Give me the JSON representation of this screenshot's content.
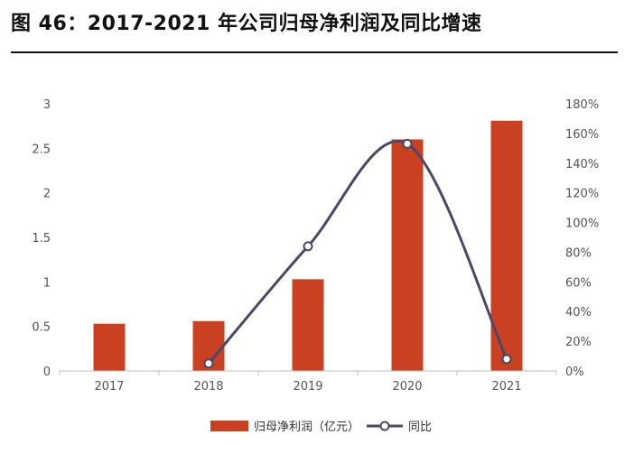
{
  "header": {
    "title": "图 46：2017-2021 年公司归母净利润及同比增速"
  },
  "colors": {
    "bar": "#c94121",
    "line": "#4a4868"
  },
  "chart_data": {
    "type": "bar",
    "categories": [
      "2017",
      "2018",
      "2019",
      "2020",
      "2021"
    ],
    "series": [
      {
        "name": "归母净利润（亿元）",
        "type": "bar",
        "axis": "left",
        "values": [
          0.53,
          0.56,
          1.03,
          2.6,
          2.81
        ]
      },
      {
        "name": "同比",
        "type": "line",
        "axis": "right",
        "values": [
          null,
          5,
          84,
          153,
          8
        ]
      }
    ],
    "y_left": {
      "ylim": [
        0,
        3
      ],
      "ticks": [
        "0",
        "0.5",
        "1",
        "1.5",
        "2",
        "2.5",
        "3"
      ]
    },
    "y_right": {
      "ylim": [
        0,
        180
      ],
      "ticks": [
        "0%",
        "20%",
        "40%",
        "60%",
        "80%",
        "100%",
        "120%",
        "140%",
        "160%",
        "180%"
      ]
    },
    "legend_position": "bottom",
    "grid": false
  }
}
